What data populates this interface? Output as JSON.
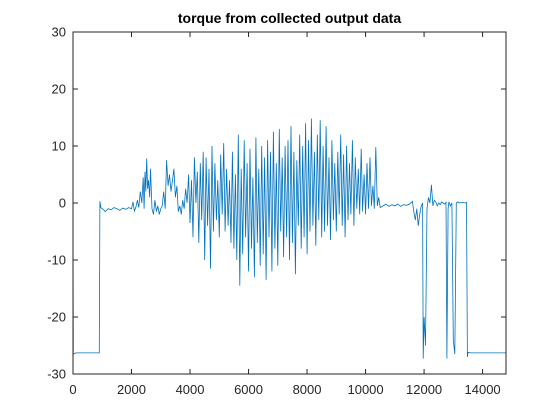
{
  "chart_data": {
    "type": "line",
    "title": "torque from collected output data",
    "xlabel": "",
    "ylabel": "",
    "xlim": [
      0,
      14800
    ],
    "ylim": [
      -30,
      30
    ],
    "xticks": [
      0,
      2000,
      4000,
      6000,
      8000,
      10000,
      12000,
      14000
    ],
    "yticks": [
      -30,
      -20,
      -10,
      0,
      10,
      20,
      30
    ],
    "grid": false,
    "box": true,
    "series_color": "#0072bd",
    "series": [
      {
        "values_description_free": true,
        "points": [
          [
            0,
            0
          ],
          [
            10,
            -26.5
          ],
          [
            100,
            -26.3
          ],
          [
            500,
            -26.3
          ],
          [
            880,
            -26.3
          ],
          [
            900,
            -26.3
          ],
          [
            920,
            0.3
          ],
          [
            950,
            -0.8
          ],
          [
            1050,
            -1.2
          ],
          [
            1100,
            -1.5
          ],
          [
            1200,
            -1.0
          ],
          [
            1300,
            -1.2
          ],
          [
            1400,
            -0.8
          ],
          [
            1500,
            -1.0
          ],
          [
            1600,
            -1.3
          ],
          [
            1700,
            -0.9
          ],
          [
            1800,
            -1.1
          ],
          [
            1900,
            -0.8
          ],
          [
            2000,
            -1.0
          ],
          [
            2050,
            0.2
          ],
          [
            2100,
            -1.4
          ],
          [
            2150,
            -0.7
          ],
          [
            2200,
            0.5
          ],
          [
            2250,
            -0.8
          ],
          [
            2300,
            2.0
          ],
          [
            2350,
            0.0
          ],
          [
            2400,
            4.5
          ],
          [
            2430,
            -1.0
          ],
          [
            2460,
            5.5
          ],
          [
            2490,
            2.0
          ],
          [
            2520,
            7.8
          ],
          [
            2550,
            2.5
          ],
          [
            2580,
            4.0
          ],
          [
            2620,
            1.0
          ],
          [
            2650,
            6.0
          ],
          [
            2700,
            -1.0
          ],
          [
            2750,
            -2.0
          ],
          [
            2800,
            0.5
          ],
          [
            2850,
            -1.5
          ],
          [
            2900,
            -0.5
          ],
          [
            2950,
            -2.0
          ],
          [
            3000,
            -1.0
          ],
          [
            3050,
            -0.5
          ],
          [
            3100,
            2.0
          ],
          [
            3150,
            -1.0
          ],
          [
            3200,
            7.5
          ],
          [
            3250,
            3.0
          ],
          [
            3300,
            5.0
          ],
          [
            3350,
            2.0
          ],
          [
            3400,
            4.0
          ],
          [
            3450,
            6.0
          ],
          [
            3500,
            1.0
          ],
          [
            3550,
            3.0
          ],
          [
            3600,
            -1.5
          ],
          [
            3650,
            -0.5
          ],
          [
            3700,
            -2.0
          ],
          [
            3750,
            0.5
          ],
          [
            3800,
            -1.0
          ],
          [
            3850,
            2.5
          ],
          [
            3900,
            0.0
          ],
          [
            3950,
            5.0
          ],
          [
            4000,
            -3.5
          ],
          [
            4050,
            4.0
          ],
          [
            4100,
            -6.0
          ],
          [
            4150,
            8.0
          ],
          [
            4200,
            0.0
          ],
          [
            4250,
            5.5
          ],
          [
            4300,
            -7.0
          ],
          [
            4350,
            7.0
          ],
          [
            4400,
            -3.0
          ],
          [
            4450,
            9.0
          ],
          [
            4500,
            -10.0
          ],
          [
            4550,
            8.0
          ],
          [
            4600,
            -4.0
          ],
          [
            4650,
            6.0
          ],
          [
            4700,
            -11.5
          ],
          [
            4750,
            10.0
          ],
          [
            4800,
            -5.0
          ],
          [
            4850,
            7.0
          ],
          [
            4900,
            -3.0
          ],
          [
            4950,
            4.0
          ],
          [
            5000,
            -6.0
          ],
          [
            5050,
            8.5
          ],
          [
            5100,
            -2.0
          ],
          [
            5150,
            10.5
          ],
          [
            5200,
            -5.0
          ],
          [
            5250,
            6.0
          ],
          [
            5300,
            -4.0
          ],
          [
            5350,
            4.0
          ],
          [
            5400,
            -7.0
          ],
          [
            5450,
            9.0
          ],
          [
            5500,
            -8.0
          ],
          [
            5550,
            5.0
          ],
          [
            5600,
            -10.0
          ],
          [
            5650,
            12.0
          ],
          [
            5700,
            -14.5
          ],
          [
            5750,
            6.0
          ],
          [
            5800,
            -9.0
          ],
          [
            5850,
            11.0
          ],
          [
            5900,
            -6.0
          ],
          [
            5950,
            7.0
          ],
          [
            6000,
            -12.0
          ],
          [
            6050,
            9.5
          ],
          [
            6100,
            -8.0
          ],
          [
            6150,
            4.5
          ],
          [
            6200,
            -13.0
          ],
          [
            6250,
            11.5
          ],
          [
            6300,
            -7.0
          ],
          [
            6350,
            6.0
          ],
          [
            6400,
            -11.0
          ],
          [
            6450,
            10.0
          ],
          [
            6500,
            -9.0
          ],
          [
            6550,
            8.0
          ],
          [
            6600,
            -13.5
          ],
          [
            6650,
            11.0
          ],
          [
            6700,
            -6.0
          ],
          [
            6750,
            9.0
          ],
          [
            6800,
            -12.0
          ],
          [
            6850,
            12.5
          ],
          [
            6900,
            -8.0
          ],
          [
            6950,
            7.0
          ],
          [
            7000,
            -11.0
          ],
          [
            7050,
            13.0
          ],
          [
            7100,
            -5.0
          ],
          [
            7150,
            8.0
          ],
          [
            7200,
            -9.5
          ],
          [
            7250,
            10.0
          ],
          [
            7300,
            -6.0
          ],
          [
            7350,
            11.0
          ],
          [
            7400,
            -10.0
          ],
          [
            7450,
            13.5
          ],
          [
            7500,
            -7.0
          ],
          [
            7550,
            9.0
          ],
          [
            7600,
            -12.5
          ],
          [
            7650,
            7.5
          ],
          [
            7700,
            -4.0
          ],
          [
            7750,
            12.0
          ],
          [
            7800,
            -8.0
          ],
          [
            7850,
            10.0
          ],
          [
            7900,
            -6.0
          ],
          [
            7950,
            14.0
          ],
          [
            8000,
            -9.0
          ],
          [
            8050,
            11.0
          ],
          [
            8100,
            -5.0
          ],
          [
            8150,
            14.8
          ],
          [
            8200,
            -4.0
          ],
          [
            8250,
            9.0
          ],
          [
            8300,
            -7.5
          ],
          [
            8350,
            12.0
          ],
          [
            8400,
            -3.0
          ],
          [
            8450,
            14.5
          ],
          [
            8500,
            -6.0
          ],
          [
            8550,
            10.0
          ],
          [
            8600,
            -5.0
          ],
          [
            8650,
            13.5
          ],
          [
            8700,
            -4.0
          ],
          [
            8750,
            8.0
          ],
          [
            8800,
            -6.5
          ],
          [
            8850,
            11.0
          ],
          [
            8900,
            -3.0
          ],
          [
            8950,
            7.0
          ],
          [
            9000,
            -5.0
          ],
          [
            9050,
            9.0
          ],
          [
            9100,
            -2.0
          ],
          [
            9150,
            12.0
          ],
          [
            9200,
            -4.0
          ],
          [
            9250,
            8.5
          ],
          [
            9300,
            -6.0
          ],
          [
            9350,
            10.0
          ],
          [
            9400,
            -3.0
          ],
          [
            9450,
            7.0
          ],
          [
            9500,
            -2.0
          ],
          [
            9550,
            11.0
          ],
          [
            9600,
            -4.0
          ],
          [
            9650,
            8.0
          ],
          [
            9700,
            -1.0
          ],
          [
            9750,
            6.0
          ],
          [
            9800,
            -2.0
          ],
          [
            9850,
            9.5
          ],
          [
            9900,
            -1.5
          ],
          [
            9950,
            5.0
          ],
          [
            10000,
            -2.0
          ],
          [
            10050,
            7.0
          ],
          [
            10100,
            -1.0
          ],
          [
            10150,
            8.0
          ],
          [
            10200,
            -0.5
          ],
          [
            10250,
            3.0
          ],
          [
            10300,
            -1.0
          ],
          [
            10350,
            9.8
          ],
          [
            10400,
            -0.5
          ],
          [
            10450,
            1.0
          ],
          [
            10500,
            -0.8
          ],
          [
            10600,
            -0.5
          ],
          [
            10700,
            -0.2
          ],
          [
            10800,
            -0.6
          ],
          [
            10900,
            -0.3
          ],
          [
            11000,
            -0.5
          ],
          [
            11100,
            -0.2
          ],
          [
            11200,
            -0.6
          ],
          [
            11300,
            -0.3
          ],
          [
            11400,
            -0.4
          ],
          [
            11500,
            -0.2
          ],
          [
            11600,
            0.3
          ],
          [
            11650,
            -1.5
          ],
          [
            11700,
            -3.0
          ],
          [
            11750,
            -1.0
          ],
          [
            11800,
            -4.0
          ],
          [
            11850,
            -2.0
          ],
          [
            11900,
            -0.5
          ],
          [
            11950,
            0.0
          ],
          [
            11970,
            -27.3
          ],
          [
            12000,
            -20.0
          ],
          [
            12050,
            -25.0
          ],
          [
            12100,
            -1.0
          ],
          [
            12150,
            1.0
          ],
          [
            12200,
            0.0
          ],
          [
            12250,
            3.2
          ],
          [
            12300,
            -0.5
          ],
          [
            12350,
            0.5
          ],
          [
            12400,
            0.2
          ],
          [
            12450,
            -0.5
          ],
          [
            12500,
            0.0
          ],
          [
            12550,
            -0.3
          ],
          [
            12600,
            0.2
          ],
          [
            12650,
            0.0
          ],
          [
            12700,
            -0.2
          ],
          [
            12750,
            0.1
          ],
          [
            12780,
            -27.3
          ],
          [
            12820,
            -1.0
          ],
          [
            12850,
            0.2
          ],
          [
            12900,
            -0.5
          ],
          [
            12950,
            0.0
          ],
          [
            13000,
            -24.0
          ],
          [
            13050,
            -26.5
          ],
          [
            13100,
            0.0
          ],
          [
            13150,
            0.2
          ],
          [
            13200,
            0.0
          ],
          [
            13300,
            0.1
          ],
          [
            13400,
            0.0
          ],
          [
            13450,
            0.1
          ],
          [
            13480,
            -27.0
          ],
          [
            13500,
            -26.2
          ],
          [
            13600,
            -26.3
          ],
          [
            14000,
            -26.3
          ],
          [
            14400,
            -26.3
          ],
          [
            14800,
            -26.3
          ]
        ]
      }
    ]
  }
}
